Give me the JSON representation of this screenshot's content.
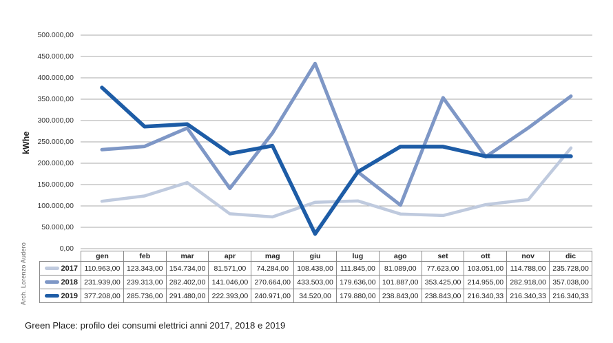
{
  "figure": {
    "caption": "Green Place: profilo dei consumi elettrici anni 2017, 2018 e 2019",
    "credit": "Arch. Lorenzo Audero"
  },
  "colors": {
    "gridline": "#a8a8a8",
    "table_border": "#8a8a8a",
    "series_2017": "#bfcade",
    "series_2018": "#7e97c6",
    "series_2019": "#1d5ca6"
  },
  "chart_data": {
    "type": "line",
    "title": "",
    "xlabel": "",
    "ylabel": "kWhe",
    "ylim": [
      0,
      500000
    ],
    "ytick_interval": 50000,
    "ytick_labels_top_to_bottom": [
      "500.000,00",
      "450.000,00",
      "400.000,00",
      "350.000,00",
      "300.000,00",
      "250.000,00",
      "200.000,00",
      "150.000,00",
      "100.000,00",
      "50.000,00",
      "0,00"
    ],
    "grid": true,
    "legend_position": "table-rows-left",
    "categories": [
      "gen",
      "feb",
      "mar",
      "apr",
      "mag",
      "giu",
      "lug",
      "ago",
      "set",
      "ott",
      "nov",
      "dic"
    ],
    "series": [
      {
        "name": "2017",
        "color": "#bfcade",
        "line_width": 4.5,
        "values": [
          110963.0,
          123343.0,
          154734.0,
          81571.0,
          74284.0,
          108438.0,
          111845.0,
          81089.0,
          77623.0,
          103051.0,
          114788.0,
          235728.0
        ],
        "labels": [
          "110.963,00",
          "123.343,00",
          "154.734,00",
          "81.571,00",
          "74.284,00",
          "108.438,00",
          "111.845,00",
          "81.089,00",
          "77.623,00",
          "103.051,00",
          "114.788,00",
          "235.728,00"
        ]
      },
      {
        "name": "2018",
        "color": "#7e97c6",
        "line_width": 5,
        "values": [
          231939.0,
          239313.0,
          282402.0,
          141046.0,
          270664.0,
          433503.0,
          179636.0,
          101887.0,
          353425.0,
          214955.0,
          282918.0,
          357038.0
        ],
        "labels": [
          "231.939,00",
          "239.313,00",
          "282.402,00",
          "141.046,00",
          "270.664,00",
          "433.503,00",
          "179.636,00",
          "101.887,00",
          "353.425,00",
          "214.955,00",
          "282.918,00",
          "357.038,00"
        ]
      },
      {
        "name": "2019",
        "color": "#1d5ca6",
        "line_width": 5.5,
        "values": [
          377208.0,
          285736.0,
          291480.0,
          222393.0,
          240971.0,
          34520.0,
          179880.0,
          238843.0,
          238843.0,
          216340.33,
          216340.33,
          216340.33
        ],
        "labels": [
          "377.208,00",
          "285.736,00",
          "291.480,00",
          "222.393,00",
          "240.971,00",
          "34.520,00",
          "179.880,00",
          "238.843,00",
          "238.843,00",
          "216.340,33",
          "216.340,33",
          "216.340,33"
        ]
      }
    ]
  }
}
